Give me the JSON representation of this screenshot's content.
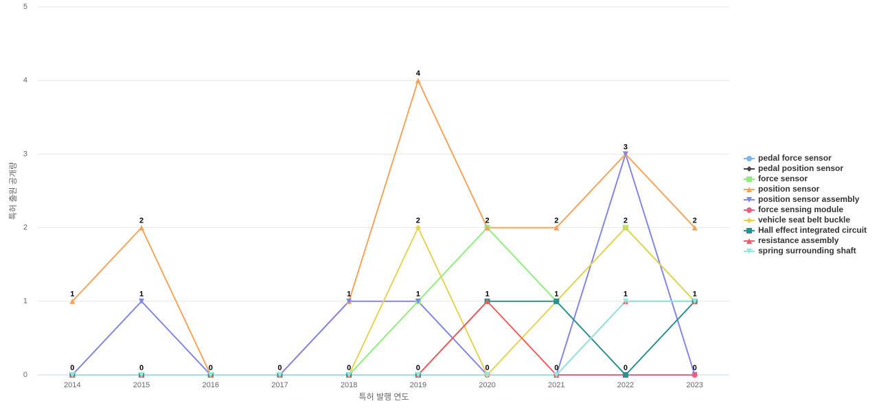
{
  "chart_data": {
    "type": "line",
    "x_label": "특허 발행 연도",
    "y_label": "특허 출원 공개량",
    "categories": [
      "2014",
      "2015",
      "2016",
      "2017",
      "2018",
      "2019",
      "2020",
      "2021",
      "2022",
      "2023"
    ],
    "ylim": [
      0,
      5
    ],
    "yticks": [
      0,
      1,
      2,
      3,
      4,
      5
    ],
    "grid": true,
    "legend": "right",
    "series": [
      {
        "name": "pedal force sensor",
        "color": "#7cb5ec",
        "marker": "circle",
        "values": [
          0,
          0,
          0,
          0,
          0,
          0,
          0,
          0,
          0,
          0
        ]
      },
      {
        "name": "pedal position sensor",
        "color": "#434348",
        "marker": "diamond",
        "values": [
          0,
          0,
          0,
          0,
          0,
          0,
          0,
          0,
          0,
          0
        ]
      },
      {
        "name": "force sensor",
        "color": "#90ed7d",
        "marker": "square",
        "values": [
          0,
          0,
          0,
          0,
          0,
          1,
          2,
          1,
          2,
          1
        ]
      },
      {
        "name": "position sensor",
        "color": "#f7a35c",
        "marker": "triangle",
        "values": [
          1,
          2,
          0,
          0,
          1,
          4,
          2,
          2,
          3,
          2
        ]
      },
      {
        "name": "position sensor assembly",
        "color": "#8085e9",
        "marker": "triangle-down",
        "values": [
          0,
          1,
          0,
          0,
          1,
          1,
          0,
          0,
          3,
          0
        ]
      },
      {
        "name": "force sensing module",
        "color": "#f15c80",
        "marker": "circle",
        "values": [
          0,
          0,
          0,
          0,
          0,
          0,
          0,
          0,
          0,
          0
        ]
      },
      {
        "name": "vehicle seat belt buckle",
        "color": "#e4d354",
        "marker": "diamond",
        "values": [
          0,
          0,
          0,
          0,
          0,
          2,
          0,
          1,
          2,
          1
        ]
      },
      {
        "name": "Hall effect integrated circuit",
        "color": "#2b908f",
        "marker": "square",
        "values": [
          0,
          0,
          0,
          0,
          0,
          0,
          1,
          1,
          0,
          1
        ]
      },
      {
        "name": "resistance assembly",
        "color": "#f45b5b",
        "marker": "triangle",
        "values": [
          0,
          0,
          0,
          0,
          0,
          0,
          1,
          0,
          1,
          1
        ]
      },
      {
        "name": "spring surrounding shaft",
        "color": "#91e8e1",
        "marker": "triangle-down",
        "values": [
          0,
          0,
          0,
          0,
          0,
          0,
          0,
          0,
          1,
          1
        ]
      }
    ]
  }
}
